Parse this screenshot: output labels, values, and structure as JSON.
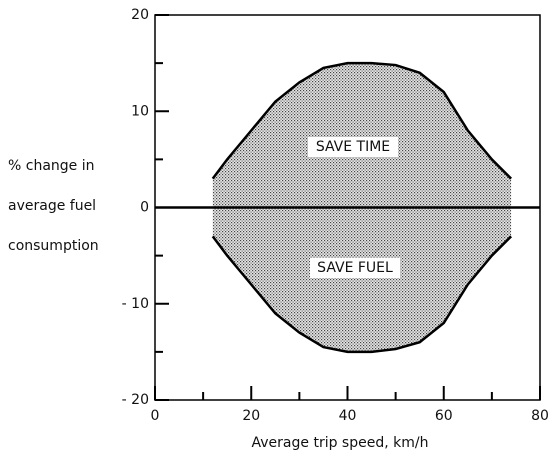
{
  "chart_data": {
    "type": "area",
    "xlabel": "Average trip speed,  km/h",
    "ylabel": [
      "% change in",
      "average fuel",
      "consumption"
    ],
    "annotations": [
      "SAVE  TIME",
      "SAVE  FUEL"
    ],
    "xlim": [
      0,
      80
    ],
    "ylim": [
      -20,
      20
    ],
    "xticks": [
      0,
      20,
      40,
      60,
      80
    ],
    "xminor_ticks": [
      10,
      30,
      50,
      70
    ],
    "yticks": [
      {
        "value": -20,
        "label": "- 20"
      },
      {
        "value": -10,
        "label": "- 10"
      },
      0,
      10,
      20
    ],
    "yminor_ticks": [
      -15,
      -5,
      5,
      15
    ],
    "color": "#888888",
    "series": [
      {
        "x": [
          12,
          15,
          20,
          25,
          30,
          35,
          40,
          45,
          50,
          55,
          60,
          65,
          70,
          74
        ],
        "values": [
          3,
          5,
          8,
          11,
          13,
          14.5,
          15,
          15,
          14.8,
          14,
          12,
          8,
          5,
          3
        ]
      },
      {
        "x": [
          12,
          15,
          20,
          25,
          30,
          35,
          40,
          45,
          50,
          55,
          60,
          65,
          70,
          74
        ],
        "values": [
          -3,
          -5,
          -8,
          -11,
          -13,
          -14.5,
          -15,
          -15,
          -14.7,
          -14,
          -12,
          -8,
          -5,
          -3
        ]
      }
    ]
  }
}
